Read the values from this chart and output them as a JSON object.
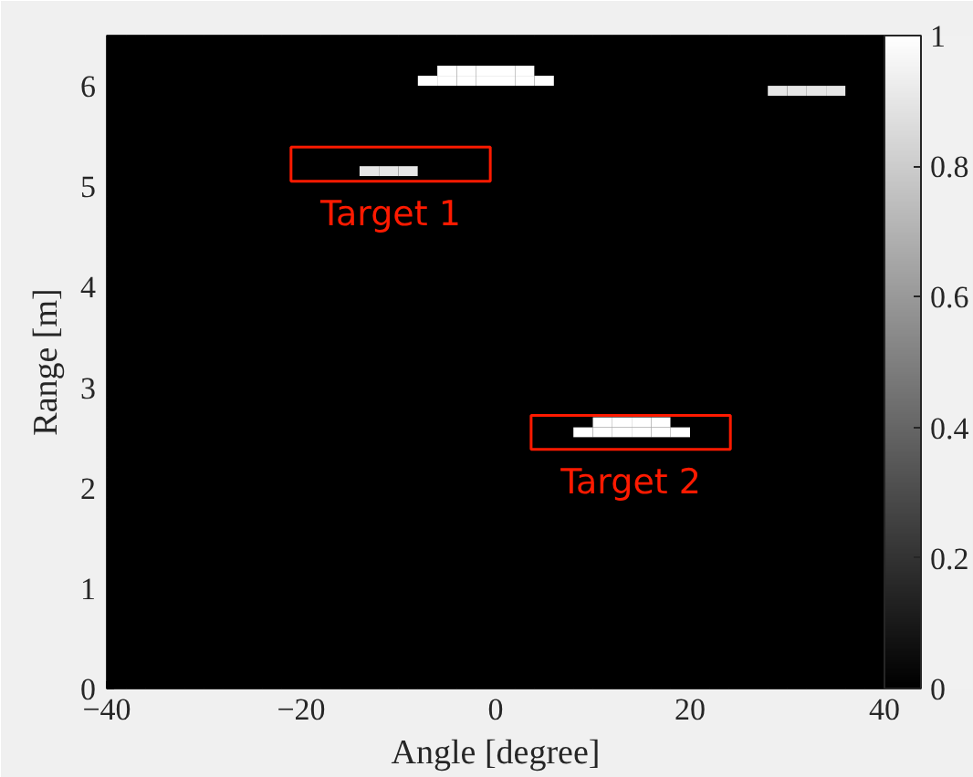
{
  "chart_data": {
    "type": "heatmap",
    "xlabel": "Angle [degree]",
    "ylabel": "Range [m]",
    "xlim": [
      -40,
      40
    ],
    "ylim": [
      0,
      6.5
    ],
    "xticks": [
      -40,
      -20,
      0,
      20,
      40
    ],
    "yticks": [
      0,
      1,
      2,
      3,
      4,
      5,
      6
    ],
    "clim": [
      0,
      1
    ],
    "cticks": [
      0,
      0.2,
      0.4,
      0.6,
      0.8,
      1
    ],
    "grid": false,
    "annotations": [
      "Target 1",
      "Target 2"
    ],
    "cells": [
      [
        0,
        0,
        0,
        0,
        0,
        0,
        0,
        0,
        0,
        0,
        0,
        0,
        0,
        0,
        0,
        0,
        0,
        0,
        0,
        0,
        0,
        0,
        0,
        0,
        0,
        0,
        0,
        0,
        0,
        0,
        0,
        0,
        0,
        0,
        0,
        0,
        0,
        0,
        0,
        0
      ],
      [
        0,
        0,
        0,
        0,
        0,
        0,
        0,
        0,
        0,
        0,
        0,
        0,
        0,
        0,
        0,
        0,
        0,
        0,
        0,
        0,
        0,
        0,
        0,
        0,
        0,
        0,
        0,
        0,
        0,
        0,
        0,
        0,
        0,
        0,
        0,
        0,
        0,
        0,
        0,
        0
      ],
      [
        0,
        0,
        0,
        0,
        0,
        0,
        0,
        0,
        0,
        0,
        0,
        0,
        0,
        0,
        0,
        0,
        0,
        0,
        0,
        0,
        0,
        0,
        0,
        0,
        0,
        0,
        0,
        0,
        0,
        0,
        0,
        0,
        0,
        0,
        0,
        0,
        0,
        0,
        0,
        0
      ],
      [
        0,
        0,
        0,
        0,
        0,
        0,
        0,
        0,
        0,
        0,
        0,
        0,
        0,
        0,
        0,
        0,
        0,
        1,
        1,
        1,
        1,
        1,
        0,
        0,
        0,
        0,
        0,
        0,
        0,
        0,
        0,
        0,
        0,
        0,
        0,
        0,
        0,
        0,
        0,
        0
      ],
      [
        0,
        0,
        0,
        0,
        0,
        0,
        0,
        0,
        0,
        0,
        0,
        0,
        0,
        0,
        0,
        0,
        1,
        1,
        1,
        1,
        1,
        1,
        1,
        0,
        0,
        0,
        0,
        0,
        0,
        0,
        0,
        0,
        0,
        0,
        0,
        0,
        0,
        0,
        0,
        0
      ],
      [
        0,
        0,
        0,
        0,
        0,
        0,
        0,
        0,
        0,
        0,
        0,
        0,
        0,
        0,
        0,
        0,
        0,
        0,
        0,
        0,
        0,
        0,
        0,
        0,
        0,
        0,
        0,
        0,
        0,
        0,
        0,
        0,
        0,
        0,
        0.9,
        0.9,
        0.9,
        0.9,
        0,
        0
      ],
      [
        0,
        0,
        0,
        0,
        0,
        0,
        0,
        0,
        0,
        0,
        0,
        0,
        0,
        0,
        0,
        0,
        0,
        0,
        0,
        0,
        0,
        0,
        0,
        0,
        0,
        0,
        0,
        0,
        0,
        0,
        0,
        0,
        0,
        0,
        0,
        0,
        0,
        0,
        0,
        0
      ],
      [
        0,
        0,
        0,
        0,
        0,
        0,
        0,
        0,
        0,
        0,
        0,
        0,
        0,
        0,
        0,
        0,
        0,
        0,
        0,
        0,
        0,
        0,
        0,
        0,
        0,
        0,
        0,
        0,
        0,
        0,
        0,
        0,
        0,
        0,
        0,
        0,
        0,
        0,
        0,
        0
      ],
      [
        0,
        0,
        0,
        0,
        0,
        0,
        0,
        0,
        0,
        0,
        0,
        0,
        0,
        0,
        0,
        0,
        0,
        0,
        0,
        0,
        0,
        0,
        0,
        0,
        0,
        0,
        0,
        0,
        0,
        0,
        0,
        0,
        0,
        0,
        0,
        0,
        0,
        0,
        0,
        0
      ],
      [
        0,
        0,
        0,
        0,
        0,
        0,
        0,
        0,
        0,
        0,
        0,
        0,
        0,
        0,
        0,
        0,
        0,
        0,
        0,
        0,
        0,
        0,
        0,
        0,
        0,
        0,
        0,
        0,
        0,
        0,
        0,
        0,
        0,
        0,
        0,
        0,
        0,
        0,
        0,
        0
      ],
      [
        0,
        0,
        0,
        0,
        0,
        0,
        0,
        0,
        0,
        0,
        0,
        0,
        0,
        0,
        0,
        0,
        0,
        0,
        0,
        0,
        0,
        0,
        0,
        0,
        0,
        0,
        0,
        0,
        0,
        0,
        0,
        0,
        0,
        0,
        0,
        0,
        0,
        0,
        0,
        0
      ],
      [
        0,
        0,
        0,
        0,
        0,
        0,
        0,
        0,
        0,
        0,
        0,
        0,
        0,
        0,
        0,
        0,
        0,
        0,
        0,
        0,
        0,
        0,
        0,
        0,
        0,
        0,
        0,
        0,
        0,
        0,
        0,
        0,
        0,
        0,
        0,
        0,
        0,
        0,
        0,
        0
      ],
      [
        0,
        0,
        0,
        0,
        0,
        0,
        0,
        0,
        0,
        0,
        0,
        0,
        0,
        0,
        0,
        0,
        0,
        0,
        0,
        0,
        0,
        0,
        0,
        0,
        0,
        0,
        0,
        0,
        0,
        0,
        0,
        0,
        0,
        0,
        0,
        0,
        0,
        0,
        0,
        0
      ],
      [
        0,
        0,
        0,
        0,
        0,
        0,
        0,
        0,
        0,
        0,
        0,
        0,
        0,
        0.9,
        0.9,
        0.9,
        0,
        0,
        0,
        0,
        0,
        0,
        0,
        0,
        0,
        0,
        0,
        0,
        0,
        0,
        0,
        0,
        0,
        0,
        0,
        0,
        0,
        0,
        0,
        0
      ],
      [
        0,
        0,
        0,
        0,
        0,
        0,
        0,
        0,
        0,
        0,
        0,
        0,
        0,
        0,
        0,
        0,
        0,
        0,
        0,
        0,
        0,
        0,
        0,
        0,
        0,
        0,
        0,
        0,
        0,
        0,
        0,
        0,
        0,
        0,
        0,
        0,
        0,
        0,
        0,
        0
      ],
      [
        0,
        0,
        0,
        0,
        0,
        0,
        0,
        0,
        0,
        0,
        0,
        0,
        0,
        0,
        0,
        0,
        0,
        0,
        0,
        0,
        0,
        0,
        0,
        0,
        0,
        0,
        0,
        0,
        0,
        0,
        0,
        0,
        0,
        0,
        0,
        0,
        0,
        0,
        0,
        0
      ],
      [
        0,
        0,
        0,
        0,
        0,
        0,
        0,
        0,
        0,
        0,
        0,
        0,
        0,
        0,
        0,
        0,
        0,
        0,
        0,
        0,
        0,
        0,
        0,
        0,
        0,
        0,
        0,
        0,
        0,
        0,
        0,
        0,
        0,
        0,
        0,
        0,
        0,
        0,
        0,
        0
      ],
      [
        0,
        0,
        0,
        0,
        0,
        0,
        0,
        0,
        0,
        0,
        0,
        0,
        0,
        0,
        0,
        0,
        0,
        0,
        0,
        0,
        0,
        0,
        0,
        0,
        0,
        0,
        0,
        0,
        0,
        0,
        0,
        0,
        0,
        0,
        0,
        0,
        0,
        0,
        0,
        0
      ],
      [
        0,
        0,
        0,
        0,
        0,
        0,
        0,
        0,
        0,
        0,
        0,
        0,
        0,
        0,
        0,
        0,
        0,
        0,
        0,
        0,
        0,
        0,
        0,
        0,
        0,
        0,
        0,
        0,
        0,
        0,
        0,
        0,
        0,
        0,
        0,
        0,
        0,
        0,
        0,
        0
      ],
      [
        0,
        0,
        0,
        0,
        0,
        0,
        0,
        0,
        0,
        0,
        0,
        0,
        0,
        0,
        0,
        0,
        0,
        0,
        0,
        0,
        0,
        0,
        0,
        0,
        0,
        0,
        0,
        0,
        0,
        0,
        0,
        0,
        0,
        0,
        0,
        0,
        0,
        0,
        0,
        0
      ],
      [
        0,
        0,
        0,
        0,
        0,
        0,
        0,
        0,
        0,
        0,
        0,
        0,
        0,
        0,
        0,
        0,
        0,
        0,
        0,
        0,
        0,
        0,
        0,
        0,
        0,
        0,
        0,
        0,
        0,
        0,
        0,
        0,
        0,
        0,
        0,
        0,
        0,
        0,
        0,
        0
      ],
      [
        0,
        0,
        0,
        0,
        0,
        0,
        0,
        0,
        0,
        0,
        0,
        0,
        0,
        0,
        0,
        0,
        0,
        0,
        0,
        0,
        0,
        0,
        0,
        0,
        0,
        0,
        0,
        0,
        0,
        0,
        0,
        0,
        0,
        0,
        0,
        0,
        0,
        0,
        0,
        0
      ],
      [
        0,
        0,
        0,
        0,
        0,
        0,
        0,
        0,
        0,
        0,
        0,
        0,
        0,
        0,
        0,
        0,
        0,
        0,
        0,
        0,
        0,
        0,
        0,
        0,
        0,
        0,
        0,
        0,
        0,
        0,
        0,
        0,
        0,
        0,
        0,
        0,
        0,
        0,
        0,
        0
      ],
      [
        0,
        0,
        0,
        0,
        0,
        0,
        0,
        0,
        0,
        0,
        0,
        0,
        0,
        0,
        0,
        0,
        0,
        0,
        0,
        0,
        0,
        0,
        0,
        0,
        0,
        0,
        0,
        0,
        0,
        0,
        0,
        0,
        0,
        0,
        0,
        0,
        0,
        0,
        0,
        0
      ],
      [
        0,
        0,
        0,
        0,
        0,
        0,
        0,
        0,
        0,
        0,
        0,
        0,
        0,
        0,
        0,
        0,
        0,
        0,
        0,
        0,
        0,
        0,
        0,
        0,
        0,
        0,
        0,
        0,
        0,
        0,
        0,
        0,
        0,
        0,
        0,
        0,
        0,
        0,
        0,
        0
      ],
      [
        0,
        0,
        0,
        0,
        0,
        0,
        0,
        0,
        0,
        0,
        0,
        0,
        0,
        0,
        0,
        0,
        0,
        0,
        0,
        0,
        0,
        0,
        0,
        0,
        0,
        0,
        0,
        0,
        0,
        0,
        0,
        0,
        0,
        0,
        0,
        0,
        0,
        0,
        0,
        0
      ],
      [
        0,
        0,
        0,
        0,
        0,
        0,
        0,
        0,
        0,
        0,
        0,
        0,
        0,
        0,
        0,
        0,
        0,
        0,
        0,
        0,
        0,
        0,
        0,
        0,
        0,
        0,
        0,
        0,
        0,
        0,
        0,
        0,
        0,
        0,
        0,
        0,
        0,
        0,
        0,
        0
      ],
      [
        0,
        0,
        0,
        0,
        0,
        0,
        0,
        0,
        0,
        0,
        0,
        0,
        0,
        0,
        0,
        0,
        0,
        0,
        0,
        0,
        0,
        0,
        0,
        0,
        0,
        0,
        0,
        0,
        0,
        0,
        0,
        0,
        0,
        0,
        0,
        0,
        0,
        0,
        0,
        0
      ],
      [
        0,
        0,
        0,
        0,
        0,
        0,
        0,
        0,
        0,
        0,
        0,
        0,
        0,
        0,
        0,
        0,
        0,
        0,
        0,
        0,
        0,
        0,
        0,
        0,
        0,
        0,
        0,
        0,
        0,
        0,
        0,
        0,
        0,
        0,
        0,
        0,
        0,
        0,
        0,
        0
      ],
      [
        0,
        0,
        0,
        0,
        0,
        0,
        0,
        0,
        0,
        0,
        0,
        0,
        0,
        0,
        0,
        0,
        0,
        0,
        0,
        0,
        0,
        0,
        0,
        0,
        0,
        0,
        0,
        0,
        0,
        0,
        0,
        0,
        0,
        0,
        0,
        0,
        0,
        0,
        0,
        0
      ],
      [
        0,
        0,
        0,
        0,
        0,
        0,
        0,
        0,
        0,
        0,
        0,
        0,
        0,
        0,
        0,
        0,
        0,
        0,
        0,
        0,
        0,
        0,
        0,
        0,
        0,
        0,
        0,
        0,
        0,
        0,
        0,
        0,
        0,
        0,
        0,
        0,
        0,
        0,
        0,
        0
      ],
      [
        0,
        0,
        0,
        0,
        0,
        0,
        0,
        0,
        0,
        0,
        0,
        0,
        0,
        0,
        0,
        0,
        0,
        0,
        0,
        0,
        0,
        0,
        0,
        0,
        0,
        0,
        0,
        0,
        0,
        0,
        0,
        0,
        0,
        0,
        0,
        0,
        0,
        0,
        0,
        0
      ],
      [
        0,
        0,
        0,
        0,
        0,
        0,
        0,
        0,
        0,
        0,
        0,
        0,
        0,
        0,
        0,
        0,
        0,
        0,
        0,
        0,
        0,
        0,
        0,
        0,
        0,
        0,
        0,
        0,
        0,
        0,
        0,
        0,
        0,
        0,
        0,
        0,
        0,
        0,
        0,
        0
      ],
      [
        0,
        0,
        0,
        0,
        0,
        0,
        0,
        0,
        0,
        0,
        0,
        0,
        0,
        0,
        0,
        0,
        0,
        0,
        0,
        0,
        0,
        0,
        0,
        0,
        0,
        0,
        0,
        0,
        0,
        0,
        0,
        0,
        0,
        0,
        0,
        0,
        0,
        0,
        0,
        0
      ],
      [
        0,
        0,
        0,
        0,
        0,
        0,
        0,
        0,
        0,
        0,
        0,
        0,
        0,
        0,
        0,
        0,
        0,
        0,
        0,
        0,
        0,
        0,
        0,
        0,
        0,
        0,
        0,
        0,
        0,
        0,
        0,
        0,
        0,
        0,
        0,
        0,
        0,
        0,
        0,
        0
      ],
      [
        0,
        0,
        0,
        0,
        0,
        0,
        0,
        0,
        0,
        0,
        0,
        0,
        0,
        0,
        0,
        0,
        0,
        0,
        0,
        0,
        0,
        0,
        0,
        0,
        0,
        0,
        0,
        0,
        0,
        0,
        0,
        0,
        0,
        0,
        0,
        0,
        0,
        0,
        0,
        0
      ],
      [
        0,
        0,
        0,
        0,
        0,
        0,
        0,
        0,
        0,
        0,
        0,
        0,
        0,
        0,
        0,
        0,
        0,
        0,
        0,
        0,
        0,
        0,
        0,
        0,
        0,
        0,
        0,
        0,
        0,
        0,
        0,
        0,
        0,
        0,
        0,
        0,
        0,
        0,
        0,
        0
      ],
      [
        0,
        0,
        0,
        0,
        0,
        0,
        0,
        0,
        0,
        0,
        0,
        0,
        0,
        0,
        0,
        0,
        0,
        0,
        0,
        0,
        0,
        0,
        0,
        0,
        0,
        0,
        0,
        0,
        0,
        0,
        0,
        0,
        0,
        0,
        0,
        0,
        0,
        0,
        0,
        0
      ],
      [
        0,
        0,
        0,
        0,
        0,
        0,
        0,
        0,
        0,
        0,
        0,
        0,
        0,
        0,
        0,
        0,
        0,
        0,
        0,
        0,
        0,
        0,
        0,
        0,
        0,
        1,
        1,
        1,
        1,
        0,
        0,
        0,
        0,
        0,
        0,
        0,
        0,
        0,
        0,
        0
      ],
      [
        0,
        0,
        0,
        0,
        0,
        0,
        0,
        0,
        0,
        0,
        0,
        0,
        0,
        0,
        0,
        0,
        0,
        0,
        0,
        0,
        0,
        0,
        0,
        0,
        1,
        1,
        1,
        1,
        1,
        1,
        0,
        0,
        0,
        0,
        0,
        0,
        0,
        0,
        0,
        0
      ],
      [
        0,
        0,
        0,
        0,
        0,
        0,
        0,
        0,
        0,
        0,
        0,
        0,
        0,
        0,
        0,
        0,
        0,
        0,
        0,
        0,
        0,
        0,
        0,
        0,
        0,
        0,
        0,
        0,
        0,
        0,
        0,
        0,
        0,
        0,
        0,
        0,
        0,
        0,
        0,
        0
      ],
      [
        0,
        0,
        0,
        0,
        0,
        0,
        0,
        0,
        0,
        0,
        0,
        0,
        0,
        0,
        0,
        0,
        0,
        0,
        0,
        0,
        0,
        0,
        0,
        0,
        0,
        0,
        0,
        0,
        0,
        0,
        0,
        0,
        0,
        0,
        0,
        0,
        0,
        0,
        0,
        0
      ],
      [
        0,
        0,
        0,
        0,
        0,
        0,
        0,
        0,
        0,
        0,
        0,
        0,
        0,
        0,
        0,
        0,
        0,
        0,
        0,
        0,
        0,
        0,
        0,
        0,
        0,
        0,
        0,
        0,
        0,
        0,
        0,
        0,
        0,
        0,
        0,
        0,
        0,
        0,
        0,
        0
      ],
      [
        0,
        0,
        0,
        0,
        0,
        0,
        0,
        0,
        0,
        0,
        0,
        0,
        0,
        0,
        0,
        0,
        0,
        0,
        0,
        0,
        0,
        0,
        0,
        0,
        0,
        0,
        0,
        0,
        0,
        0,
        0,
        0,
        0,
        0,
        0,
        0,
        0,
        0,
        0,
        0
      ],
      [
        0,
        0,
        0,
        0,
        0,
        0,
        0,
        0,
        0,
        0,
        0,
        0,
        0,
        0,
        0,
        0,
        0,
        0,
        0,
        0,
        0,
        0,
        0,
        0,
        0,
        0,
        0,
        0,
        0,
        0,
        0,
        0,
        0,
        0,
        0,
        0,
        0,
        0,
        0,
        0
      ],
      [
        0,
        0,
        0,
        0,
        0,
        0,
        0,
        0,
        0,
        0,
        0,
        0,
        0,
        0,
        0,
        0,
        0,
        0,
        0,
        0,
        0,
        0,
        0,
        0,
        0,
        0,
        0,
        0,
        0,
        0,
        0,
        0,
        0,
        0,
        0,
        0,
        0,
        0,
        0,
        0
      ],
      [
        0,
        0,
        0,
        0,
        0,
        0,
        0,
        0,
        0,
        0,
        0,
        0,
        0,
        0,
        0,
        0,
        0,
        0,
        0,
        0,
        0,
        0,
        0,
        0,
        0,
        0,
        0,
        0,
        0,
        0,
        0,
        0,
        0,
        0,
        0,
        0,
        0,
        0,
        0,
        0
      ],
      [
        0,
        0,
        0,
        0,
        0,
        0,
        0,
        0,
        0,
        0,
        0,
        0,
        0,
        0,
        0,
        0,
        0,
        0,
        0,
        0,
        0,
        0,
        0,
        0,
        0,
        0,
        0,
        0,
        0,
        0,
        0,
        0,
        0,
        0,
        0,
        0,
        0,
        0,
        0,
        0
      ],
      [
        0,
        0,
        0,
        0,
        0,
        0,
        0,
        0,
        0,
        0,
        0,
        0,
        0,
        0,
        0,
        0,
        0,
        0,
        0,
        0,
        0,
        0,
        0,
        0,
        0,
        0,
        0,
        0,
        0,
        0,
        0,
        0,
        0,
        0,
        0,
        0,
        0,
        0,
        0,
        0
      ],
      [
        0,
        0,
        0,
        0,
        0,
        0,
        0,
        0,
        0,
        0,
        0,
        0,
        0,
        0,
        0,
        0,
        0,
        0,
        0,
        0,
        0,
        0,
        0,
        0,
        0,
        0,
        0,
        0,
        0,
        0,
        0,
        0,
        0,
        0,
        0,
        0,
        0,
        0,
        0,
        0
      ],
      [
        0,
        0,
        0,
        0,
        0,
        0,
        0,
        0,
        0,
        0,
        0,
        0,
        0,
        0,
        0,
        0,
        0,
        0,
        0,
        0,
        0,
        0,
        0,
        0,
        0,
        0,
        0,
        0,
        0,
        0,
        0,
        0,
        0,
        0,
        0,
        0,
        0,
        0,
        0,
        0
      ],
      [
        0,
        0,
        0,
        0,
        0,
        0,
        0,
        0,
        0,
        0,
        0,
        0,
        0,
        0,
        0,
        0,
        0,
        0,
        0,
        0,
        0,
        0,
        0,
        0,
        0,
        0,
        0,
        0,
        0,
        0,
        0,
        0,
        0,
        0,
        0,
        0,
        0,
        0,
        0,
        0
      ],
      [
        0,
        0,
        0,
        0,
        0,
        0,
        0,
        0,
        0,
        0,
        0,
        0,
        0,
        0,
        0,
        0,
        0,
        0,
        0,
        0,
        0,
        0,
        0,
        0,
        0,
        0,
        0,
        0,
        0,
        0,
        0,
        0,
        0,
        0,
        0,
        0,
        0,
        0,
        0,
        0
      ],
      [
        0,
        0,
        0,
        0,
        0,
        0,
        0,
        0,
        0,
        0,
        0,
        0,
        0,
        0,
        0,
        0,
        0,
        0,
        0,
        0,
        0,
        0,
        0,
        0,
        0,
        0,
        0,
        0,
        0,
        0,
        0,
        0,
        0,
        0,
        0,
        0,
        0,
        0,
        0,
        0
      ],
      [
        0,
        0,
        0,
        0,
        0,
        0,
        0,
        0,
        0,
        0,
        0,
        0,
        0,
        0,
        0,
        0,
        0,
        0,
        0,
        0,
        0,
        0,
        0,
        0,
        0,
        0,
        0,
        0,
        0,
        0,
        0,
        0,
        0,
        0,
        0,
        0,
        0,
        0,
        0,
        0
      ],
      [
        0,
        0,
        0,
        0,
        0,
        0,
        0,
        0,
        0,
        0,
        0,
        0,
        0,
        0,
        0,
        0,
        0,
        0,
        0,
        0,
        0,
        0,
        0,
        0,
        0,
        0,
        0,
        0,
        0,
        0,
        0,
        0,
        0,
        0,
        0,
        0,
        0,
        0,
        0,
        0
      ],
      [
        0,
        0,
        0,
        0,
        0,
        0,
        0,
        0,
        0,
        0,
        0,
        0,
        0,
        0,
        0,
        0,
        0,
        0,
        0,
        0,
        0,
        0,
        0,
        0,
        0,
        0,
        0,
        0,
        0,
        0,
        0,
        0,
        0,
        0,
        0,
        0,
        0,
        0,
        0,
        0
      ],
      [
        0,
        0,
        0,
        0,
        0,
        0,
        0,
        0,
        0,
        0,
        0,
        0,
        0,
        0,
        0,
        0,
        0,
        0,
        0,
        0,
        0,
        0,
        0,
        0,
        0,
        0,
        0,
        0,
        0,
        0,
        0,
        0,
        0,
        0,
        0,
        0,
        0,
        0,
        0,
        0
      ],
      [
        0,
        0,
        0,
        0,
        0,
        0,
        0,
        0,
        0,
        0,
        0,
        0,
        0,
        0,
        0,
        0,
        0,
        0,
        0,
        0,
        0,
        0,
        0,
        0,
        0,
        0,
        0,
        0,
        0,
        0,
        0,
        0,
        0,
        0,
        0,
        0,
        0,
        0,
        0,
        0
      ],
      [
        0,
        0,
        0,
        0,
        0,
        0,
        0,
        0,
        0,
        0,
        0,
        0,
        0,
        0,
        0,
        0,
        0,
        0,
        0,
        0,
        0,
        0,
        0,
        0,
        0,
        0,
        0,
        0,
        0,
        0,
        0,
        0,
        0,
        0,
        0,
        0,
        0,
        0,
        0,
        0
      ],
      [
        0,
        0,
        0,
        0,
        0,
        0,
        0,
        0,
        0,
        0,
        0,
        0,
        0,
        0,
        0,
        0,
        0,
        0,
        0,
        0,
        0,
        0,
        0,
        0,
        0,
        0,
        0,
        0,
        0,
        0,
        0,
        0,
        0,
        0,
        0,
        0,
        0,
        0,
        0,
        0
      ],
      [
        0,
        0,
        0,
        0,
        0,
        0,
        0,
        0,
        0,
        0,
        0,
        0,
        0,
        0,
        0,
        0,
        0,
        0,
        0,
        0,
        0,
        0,
        0,
        0,
        0,
        0,
        0,
        0,
        0,
        0,
        0,
        0,
        0,
        0,
        0,
        0,
        0,
        0,
        0,
        0
      ],
      [
        0,
        0,
        0,
        0,
        0,
        0,
        0,
        0,
        0,
        0,
        0,
        0,
        0,
        0,
        0,
        0,
        0,
        0,
        0,
        0,
        0,
        0,
        0,
        0,
        0,
        0,
        0,
        0,
        0,
        0,
        0,
        0,
        0,
        0,
        0,
        0,
        0,
        0,
        0,
        0
      ],
      [
        0,
        0,
        0,
        0,
        0,
        0,
        0,
        0,
        0,
        0,
        0,
        0,
        0,
        0,
        0,
        0,
        0,
        0,
        0,
        0,
        0,
        0,
        0,
        0,
        0,
        0,
        0,
        0,
        0,
        0,
        0,
        0,
        0,
        0,
        0,
        0,
        0,
        0,
        0,
        0
      ],
      [
        0,
        0,
        0,
        0,
        0,
        0,
        0,
        0,
        0,
        0,
        0,
        0,
        0,
        0,
        0,
        0,
        0,
        0,
        0,
        0,
        0,
        0,
        0,
        0,
        0,
        0,
        0,
        0,
        0,
        0,
        0,
        0,
        0,
        0,
        0,
        0,
        0,
        0,
        0,
        0
      ]
    ]
  }
}
